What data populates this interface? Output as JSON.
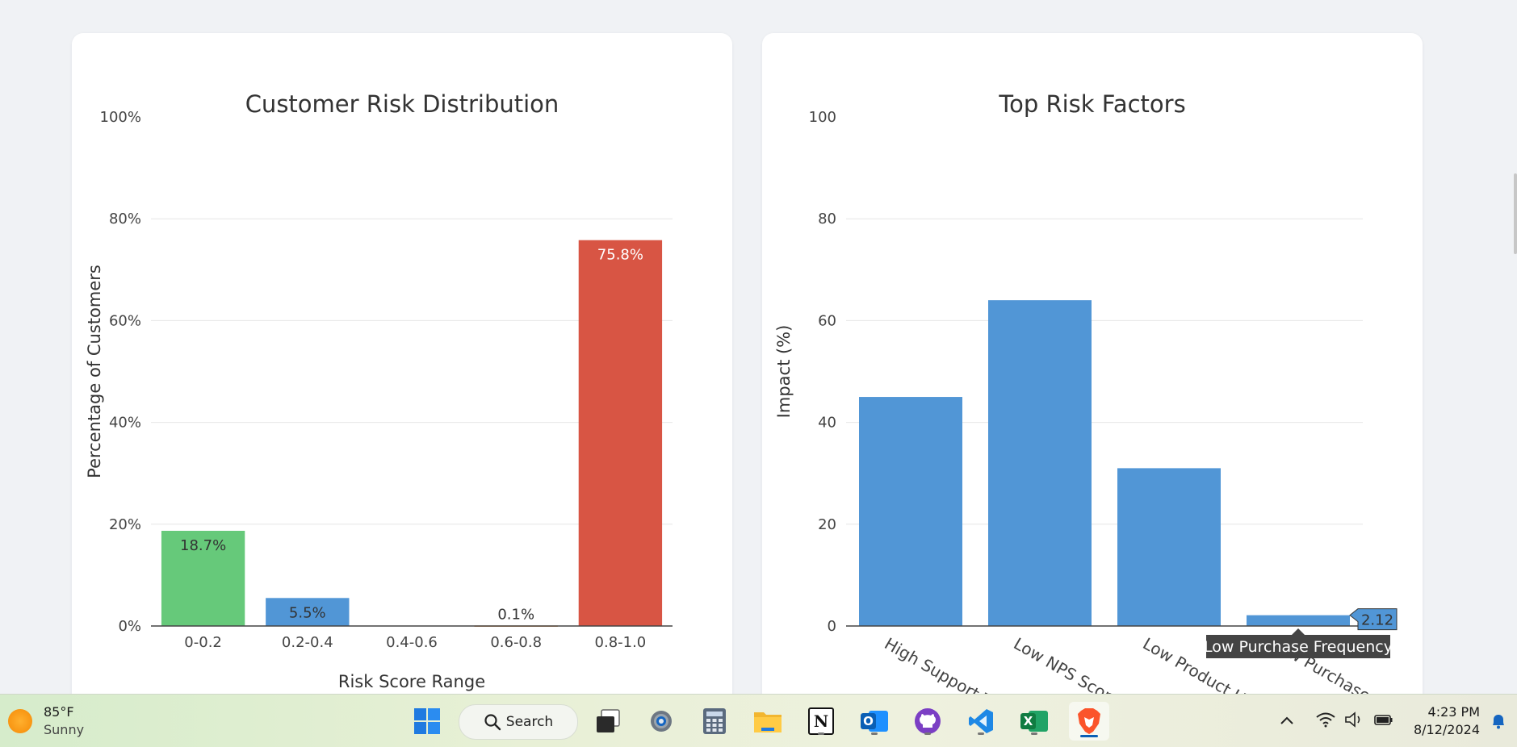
{
  "chart_data": [
    {
      "type": "bar",
      "title": "Customer Risk Distribution",
      "xlabel": "Risk Score Range",
      "ylabel": "Percentage of Customers",
      "categories": [
        "0-0.2",
        "0.2-0.4",
        "0.4-0.6",
        "0.6-0.8",
        "0.8-1.0"
      ],
      "values": [
        18.7,
        5.5,
        0,
        0.1,
        75.8
      ],
      "labels": [
        "18.7%",
        "5.5%",
        "",
        "0.1%",
        "75.8%"
      ],
      "colors": [
        "#66c97a",
        "#5196d6",
        "#f5b041",
        "#e67e22",
        "#d85544"
      ],
      "label_colors": [
        "#333333",
        "#333333",
        "#333333",
        "#333333",
        "#ffffff"
      ],
      "yticks": [
        "0%",
        "20%",
        "40%",
        "60%",
        "80%",
        "100%"
      ],
      "ylim": [
        0,
        100
      ],
      "grid": true
    },
    {
      "type": "bar",
      "title": "Top Risk Factors",
      "xlabel": "",
      "ylabel": "Impact (%)",
      "categories": [
        "High Support Tickets",
        "Low NPS Score",
        "Low Product Usage",
        "Low Purchase Frequency"
      ],
      "values": [
        45,
        64,
        31,
        2.12
      ],
      "color": "#5196d6",
      "yticks": [
        "0",
        "20",
        "40",
        "60",
        "80",
        "100"
      ],
      "ylim": [
        0,
        100
      ],
      "grid": true,
      "hover": {
        "value_label": "2.12",
        "category_label": "Low Purchase Frequency"
      }
    }
  ],
  "taskbar": {
    "weather_temp": "85°F",
    "weather_desc": "Sunny",
    "search_label": "Search",
    "time": "4:23 PM",
    "date": "8/12/2024",
    "apps": [
      "start-icon",
      "task-view-icon",
      "settings-icon",
      "calculator-icon",
      "file-explorer-icon",
      "notion-icon",
      "outlook-icon",
      "github-icon",
      "vscode-icon",
      "excel-icon",
      "brave-icon"
    ],
    "notion_letter": "N",
    "outlook_letter": "O",
    "excel_letter": "X"
  }
}
